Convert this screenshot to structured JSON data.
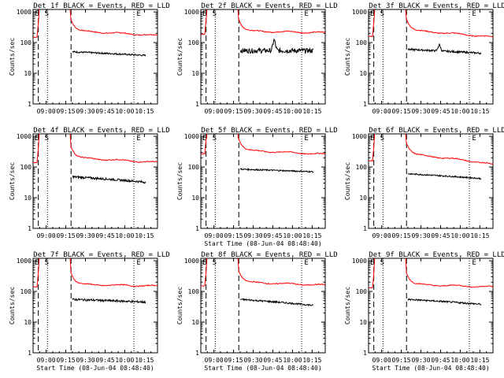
{
  "figure": {
    "ylabel": "Counts/sec",
    "xlabel": "Start Time (08-Jun-04 08:48:40)",
    "yticks": [
      "1",
      "10",
      "100",
      "1000"
    ],
    "xticks": [
      "09:00",
      "09:15",
      "09:30",
      "09:45",
      "10:00",
      "10:15"
    ],
    "ylim": [
      1,
      1200
    ],
    "xlim_minutes_after_09_00": [
      -10,
      85
    ],
    "scale": "log",
    "grid": false,
    "colors": {
      "events": "#000000",
      "lld": "#ff0000",
      "axes": "#000000"
    },
    "markers": {
      "E_left_label": "E",
      "S_label": "S",
      "E_right_label": "E",
      "dashed_lines_minutes": [
        -6,
        19
      ],
      "dotted_lines_minutes": [
        1,
        67
      ],
      "E_right_minutes": 69
    }
  },
  "chart_data": [
    {
      "type": "line",
      "title": "Det 1f BLACK = Events, RED = LLD",
      "show_xlabel": false,
      "series": [
        {
          "name": "LLD",
          "plateau": 240,
          "pre": 150,
          "end": 170
        },
        {
          "name": "Events",
          "start": 50,
          "end": 38,
          "noise": 0.06
        }
      ]
    },
    {
      "type": "line",
      "title": "Det 2f BLACK = Events, RED = LLD",
      "show_xlabel": false,
      "series": [
        {
          "name": "LLD",
          "plateau": 240,
          "pre": 190,
          "end": 210
        },
        {
          "name": "Events",
          "start": 55,
          "end": 55,
          "noise": 0.18,
          "bump_minutes": 46,
          "bump_value": 120
        }
      ]
    },
    {
      "type": "line",
      "title": "Det 3f BLACK = Events, RED = LLD",
      "show_xlabel": false,
      "series": [
        {
          "name": "LLD",
          "plateau": 250,
          "pre": 160,
          "end": 150
        },
        {
          "name": "Events",
          "start": 60,
          "end": 45,
          "noise": 0.07,
          "bump_minutes": 44,
          "bump_value": 85
        }
      ]
    },
    {
      "type": "line",
      "title": "Det 4f BLACK = Events, RED = LLD",
      "show_xlabel": false,
      "series": [
        {
          "name": "LLD",
          "plateau": 200,
          "pre": 140,
          "end": 140
        },
        {
          "name": "Events",
          "start": 48,
          "end": 32,
          "noise": 0.08
        }
      ]
    },
    {
      "type": "line",
      "title": "Det 5f BLACK = Events, RED = LLD",
      "show_xlabel": true,
      "series": [
        {
          "name": "LLD",
          "plateau": 350,
          "pre": 270,
          "end": 260
        },
        {
          "name": "Events",
          "start": 85,
          "end": 70,
          "noise": 0.05
        }
      ]
    },
    {
      "type": "line",
      "title": "Det 6f BLACK = Events, RED = LLD",
      "show_xlabel": false,
      "series": [
        {
          "name": "LLD",
          "plateau": 260,
          "pre": 160,
          "end": 120
        },
        {
          "name": "Events",
          "start": 60,
          "end": 42,
          "noise": 0.05
        }
      ]
    },
    {
      "type": "line",
      "title": "Det 7f BLACK = Events, RED = LLD",
      "show_xlabel": true,
      "series": [
        {
          "name": "LLD",
          "plateau": 170,
          "pre": 140,
          "end": 150
        },
        {
          "name": "Events",
          "start": 55,
          "end": 45,
          "noise": 0.08
        }
      ]
    },
    {
      "type": "line",
      "title": "Det 8f BLACK = Events, RED = LLD",
      "show_xlabel": true,
      "series": [
        {
          "name": "LLD",
          "plateau": 200,
          "pre": 150,
          "end": 160
        },
        {
          "name": "Events",
          "start": 55,
          "end": 35,
          "noise": 0.06
        }
      ]
    },
    {
      "type": "line",
      "title": "Det 9f BLACK = Events, RED = LLD",
      "show_xlabel": true,
      "series": [
        {
          "name": "LLD",
          "plateau": 170,
          "pre": 130,
          "end": 140
        },
        {
          "name": "Events",
          "start": 55,
          "end": 38,
          "noise": 0.06
        }
      ]
    }
  ]
}
